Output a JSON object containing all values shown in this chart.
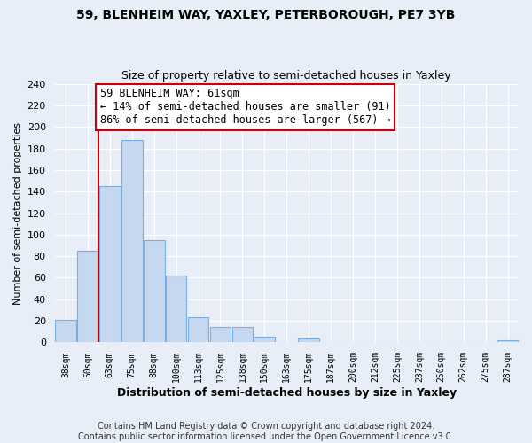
{
  "title": "59, BLENHEIM WAY, YAXLEY, PETERBOROUGH, PE7 3YB",
  "subtitle": "Size of property relative to semi-detached houses in Yaxley",
  "xlabel": "Distribution of semi-detached houses by size in Yaxley",
  "ylabel": "Number of semi-detached properties",
  "bin_labels": [
    "38sqm",
    "50sqm",
    "63sqm",
    "75sqm",
    "88sqm",
    "100sqm",
    "113sqm",
    "125sqm",
    "138sqm",
    "150sqm",
    "163sqm",
    "175sqm",
    "187sqm",
    "200sqm",
    "212sqm",
    "225sqm",
    "237sqm",
    "250sqm",
    "262sqm",
    "275sqm",
    "287sqm"
  ],
  "bar_heights": [
    21,
    85,
    145,
    188,
    95,
    62,
    23,
    14,
    14,
    5,
    0,
    4,
    0,
    0,
    0,
    0,
    0,
    0,
    0,
    0,
    2
  ],
  "bar_color": "#c5d8f0",
  "bar_edge_color": "#7aade0",
  "vline_x_index": 2,
  "vline_color": "#cc0000",
  "annotation_title": "59 BLENHEIM WAY: 61sqm",
  "annotation_line1": "← 14% of semi-detached houses are smaller (91)",
  "annotation_line2": "86% of semi-detached houses are larger (567) →",
  "annotation_box_color": "#ffffff",
  "annotation_box_edge_color": "#cc0000",
  "ylim": [
    0,
    240
  ],
  "yticks": [
    0,
    20,
    40,
    60,
    80,
    100,
    120,
    140,
    160,
    180,
    200,
    220,
    240
  ],
  "footer_line1": "Contains HM Land Registry data © Crown copyright and database right 2024.",
  "footer_line2": "Contains public sector information licensed under the Open Government Licence v3.0.",
  "background_color": "#e8eef8",
  "plot_bg_color": "#e8eef8",
  "grid_color": "#ffffff",
  "title_fontsize": 10,
  "subtitle_fontsize": 9,
  "footer_fontsize": 7
}
